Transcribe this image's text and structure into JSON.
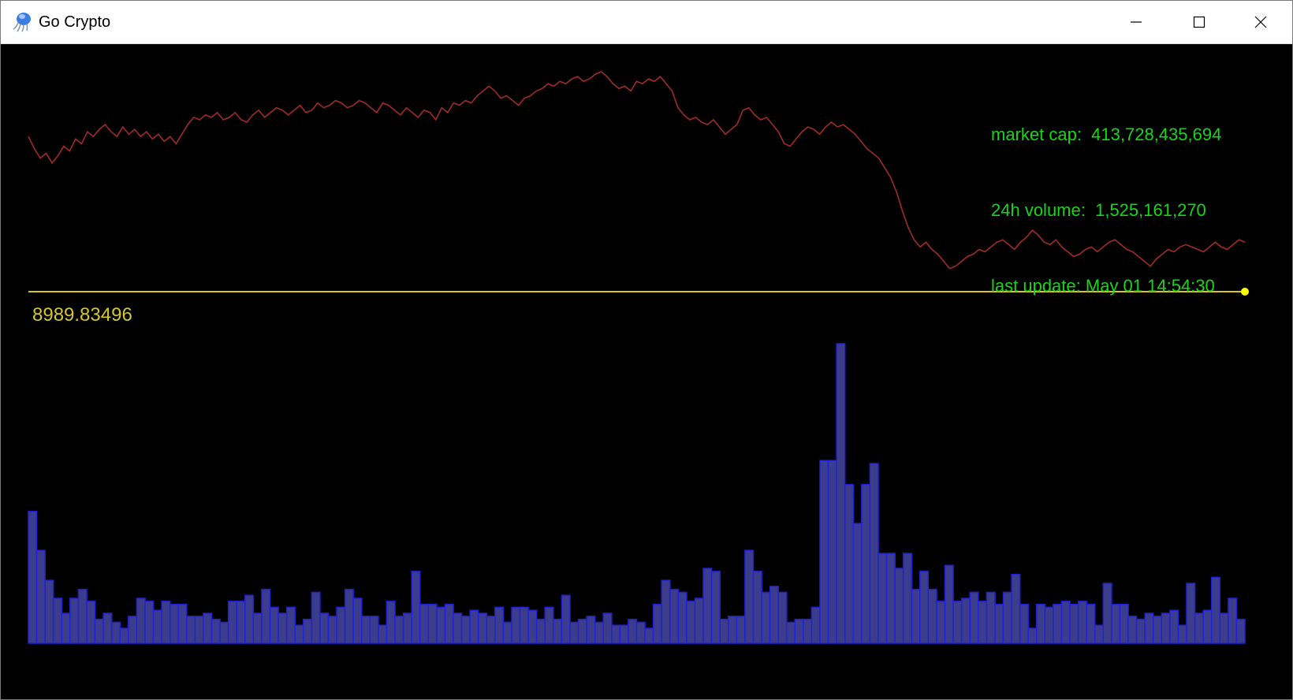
{
  "window": {
    "title": "Go Crypto",
    "app_icon": "jellyfish-icon",
    "controls": [
      "minimize-icon",
      "maximize-icon",
      "close-icon"
    ]
  },
  "stats": {
    "market_cap_label": "market cap:",
    "market_cap_value": "413,728,435,694",
    "volume_label": "24h volume:",
    "volume_value": "1,525,161,270",
    "update_label": "last update:",
    "update_value": "May 01 14:54:30"
  },
  "colors": {
    "background": "#000000",
    "price_line": "#a12a2a",
    "reference_line": "#d6c62b",
    "volume_fill": "#3b3c8c",
    "volume_stroke": "#2020d8",
    "stats_text": "#17d617"
  },
  "chart_data": [
    {
      "type": "line",
      "title": "",
      "xlabel": "",
      "ylabel": "",
      "grid": false,
      "reference_value": 8989.83496,
      "reference_label": "8989.83496",
      "series": [
        {
          "values": [
            0.83,
            0.78,
            0.74,
            0.76,
            0.72,
            0.75,
            0.79,
            0.77,
            0.82,
            0.8,
            0.85,
            0.83,
            0.86,
            0.88,
            0.85,
            0.83,
            0.87,
            0.84,
            0.86,
            0.83,
            0.85,
            0.82,
            0.84,
            0.81,
            0.83,
            0.8,
            0.84,
            0.88,
            0.91,
            0.9,
            0.92,
            0.91,
            0.93,
            0.9,
            0.91,
            0.93,
            0.9,
            0.89,
            0.92,
            0.94,
            0.91,
            0.93,
            0.95,
            0.94,
            0.92,
            0.94,
            0.96,
            0.93,
            0.94,
            0.97,
            0.95,
            0.96,
            0.98,
            0.97,
            0.95,
            0.96,
            0.98,
            0.97,
            0.95,
            0.93,
            0.97,
            0.96,
            0.94,
            0.92,
            0.95,
            0.93,
            0.91,
            0.94,
            0.93,
            0.9,
            0.95,
            0.93,
            0.97,
            0.96,
            0.98,
            0.97,
            1.0,
            1.02,
            1.04,
            1.02,
            0.99,
            1.0,
            0.98,
            0.96,
            0.99,
            1.0,
            1.02,
            1.03,
            1.05,
            1.04,
            1.06,
            1.05,
            1.07,
            1.08,
            1.06,
            1.07,
            1.09,
            1.1,
            1.08,
            1.05,
            1.03,
            1.04,
            1.02,
            1.06,
            1.05,
            1.07,
            1.06,
            1.08,
            1.05,
            1.02,
            0.95,
            0.92,
            0.9,
            0.91,
            0.89,
            0.88,
            0.9,
            0.87,
            0.84,
            0.86,
            0.88,
            0.94,
            0.95,
            0.92,
            0.9,
            0.91,
            0.88,
            0.85,
            0.8,
            0.79,
            0.82,
            0.85,
            0.87,
            0.86,
            0.84,
            0.87,
            0.89,
            0.87,
            0.88,
            0.86,
            0.84,
            0.81,
            0.78,
            0.76,
            0.74,
            0.7,
            0.66,
            0.6,
            0.52,
            0.45,
            0.4,
            0.37,
            0.39,
            0.36,
            0.34,
            0.31,
            0.28,
            0.29,
            0.31,
            0.33,
            0.34,
            0.36,
            0.35,
            0.37,
            0.39,
            0.4,
            0.38,
            0.36,
            0.39,
            0.41,
            0.44,
            0.42,
            0.39,
            0.38,
            0.4,
            0.37,
            0.35,
            0.33,
            0.34,
            0.36,
            0.37,
            0.35,
            0.37,
            0.39,
            0.4,
            0.38,
            0.36,
            0.35,
            0.33,
            0.31,
            0.29,
            0.32,
            0.34,
            0.36,
            0.35,
            0.37,
            0.38,
            0.37,
            0.36,
            0.35,
            0.37,
            0.39,
            0.37,
            0.36,
            0.38,
            0.4,
            0.39
          ],
          "display_range": [
            0,
            1.1
          ]
        }
      ]
    },
    {
      "type": "bar",
      "title": "",
      "xlabel": "",
      "ylabel": "",
      "grid": false,
      "values": [
        0.44,
        0.31,
        0.21,
        0.15,
        0.1,
        0.15,
        0.18,
        0.14,
        0.08,
        0.1,
        0.07,
        0.05,
        0.09,
        0.15,
        0.14,
        0.11,
        0.14,
        0.13,
        0.13,
        0.09,
        0.09,
        0.1,
        0.08,
        0.07,
        0.14,
        0.14,
        0.16,
        0.1,
        0.18,
        0.12,
        0.1,
        0.12,
        0.06,
        0.08,
        0.17,
        0.1,
        0.09,
        0.12,
        0.18,
        0.15,
        0.09,
        0.09,
        0.06,
        0.14,
        0.09,
        0.1,
        0.24,
        0.13,
        0.13,
        0.12,
        0.13,
        0.1,
        0.09,
        0.11,
        0.1,
        0.09,
        0.12,
        0.07,
        0.12,
        0.12,
        0.11,
        0.08,
        0.12,
        0.08,
        0.16,
        0.07,
        0.08,
        0.09,
        0.07,
        0.1,
        0.06,
        0.06,
        0.08,
        0.07,
        0.05,
        0.13,
        0.21,
        0.18,
        0.17,
        0.14,
        0.15,
        0.25,
        0.24,
        0.08,
        0.09,
        0.09,
        0.31,
        0.24,
        0.17,
        0.19,
        0.17,
        0.07,
        0.08,
        0.08,
        0.12,
        0.61,
        0.61,
        1.0,
        0.53,
        0.4,
        0.53,
        0.6,
        0.3,
        0.3,
        0.25,
        0.3,
        0.18,
        0.24,
        0.18,
        0.14,
        0.26,
        0.14,
        0.15,
        0.17,
        0.14,
        0.17,
        0.13,
        0.17,
        0.23,
        0.13,
        0.05,
        0.13,
        0.12,
        0.13,
        0.14,
        0.13,
        0.14,
        0.13,
        0.06,
        0.2,
        0.13,
        0.13,
        0.09,
        0.08,
        0.1,
        0.09,
        0.1,
        0.11,
        0.06,
        0.2,
        0.1,
        0.11,
        0.22,
        0.1,
        0.15,
        0.08
      ]
    }
  ]
}
